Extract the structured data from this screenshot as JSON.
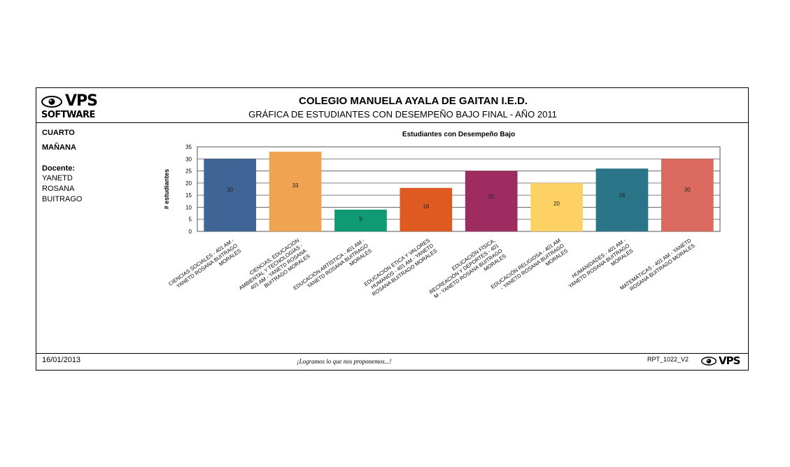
{
  "report": {
    "school": "COLEGIO MANUELA AYALA DE GAITAN I.E.D.",
    "subtitle": "GRÁFICA DE ESTUDIANTES CON DESEMPEÑO BAJO  FINAL - AÑO 2011",
    "logo_text": "VPS",
    "logo_sub": "SOFTWARE",
    "grade": "CUARTO",
    "shift": "MAÑANA",
    "teacher_label": "Docente:",
    "teacher_lines": [
      "YANETD",
      "ROSANA",
      "BUITRAGO"
    ],
    "date": "16/01/2013",
    "motto": "¡Logramos lo que nos proponemos...!",
    "code": "RPT_1022_V2"
  },
  "chart_data": {
    "type": "bar",
    "title": "Estudiantes con Desempeño Bajo",
    "ylabel": "# estudiantes",
    "xlabel": "",
    "ylim": [
      0,
      35
    ],
    "yticks": [
      0,
      5,
      10,
      15,
      20,
      25,
      30,
      35
    ],
    "grid": true,
    "categories": [
      [
        "CIENCIAS SOCIALES - 401 AM -",
        "YANETD ROSANA BUITRAGO",
        "MORALES"
      ],
      [
        "CIENCIAS, EDUCACIÓN",
        "AMBIENTAL Y TECNOLOGÍAS -",
        "401 AM - YANETD ROSANA",
        "BUITRAGO MORALES"
      ],
      [
        "EDUCACIÓN ARTÍSTICA - 401 AM -",
        "YANETD ROSANA BUITRAGO",
        "MORALES"
      ],
      [
        "EDUCACIÓN ETICA Y VALORES",
        "HUMANOS - 401 AM - YANETD",
        "ROSANA BUITRAGO MORALES"
      ],
      [
        "EDUCACIÓN FÍSICA,",
        "RECREACIÓN Y DEPORTES - 401",
        "M - YANETD ROSANA BUITRAGO",
        "MORALES"
      ],
      [
        "EDUCACIÓN RELIGIOSA - 401 AM",
        "- YANETD ROSANA BUITRAGO",
        "MORALES"
      ],
      [
        "HUMANIDADES - 401 AM -",
        "YANETD ROSANA BUITRAGO",
        "MORALES"
      ],
      [
        "MATEMÁTICAS - 401 AM - YANETD",
        "ROSANA BUITRAGO MORALES"
      ]
    ],
    "values": [
      30,
      33,
      9,
      18,
      25,
      20,
      26,
      30
    ],
    "colors": [
      "#3f6496",
      "#f0a452",
      "#0f9a73",
      "#df5a20",
      "#9e2c60",
      "#fdd163",
      "#2b7589",
      "#db6a5e"
    ]
  }
}
